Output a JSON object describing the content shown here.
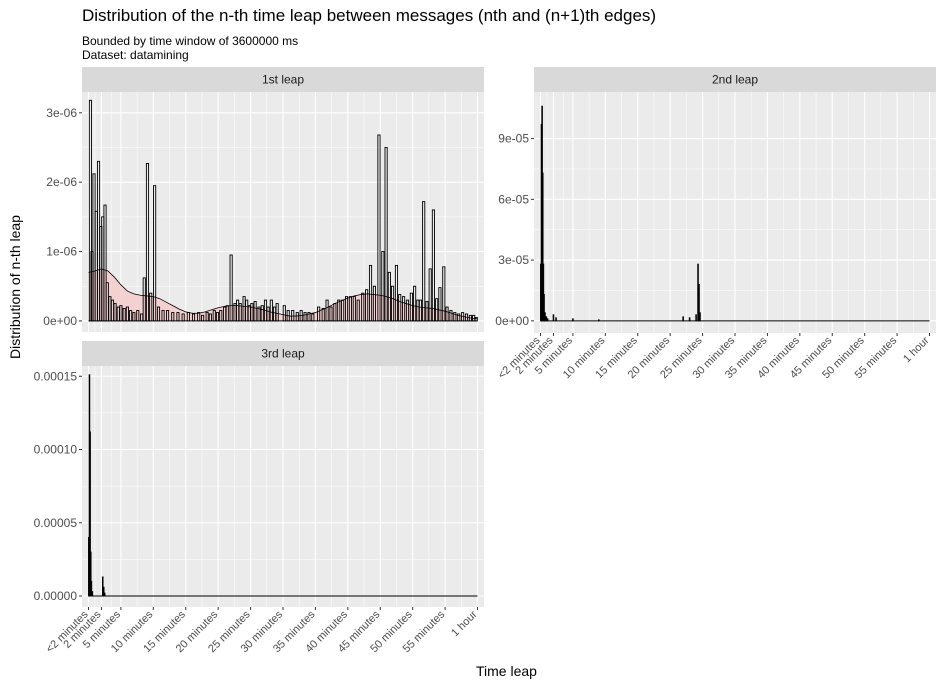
{
  "title": "Distribution of the n-th time leap between messages (nth and (n+1)th edges)",
  "subtitle_lines": [
    "Bounded by time window of 3600000 ms",
    "Dataset: datamining"
  ],
  "xlabel": "Time leap",
  "ylabel": "Distribution of n-th leap",
  "colors": {
    "panel_bg": "#EBEBEB",
    "strip_bg": "#D9D9D9",
    "grid": "#FFFFFF",
    "bar_outline": "#000000",
    "density_fill": "#F4CCCC",
    "axis_text": "#4D4D4D"
  },
  "chart_data": {
    "type": "bar",
    "facets": "wrap",
    "x_ticks": [
      {
        "v": 0,
        "label": "<2 minutes"
      },
      {
        "v": 2,
        "label": "2 minutes"
      },
      {
        "v": 5,
        "label": "5 minutes"
      },
      {
        "v": 10,
        "label": "10 minutes"
      },
      {
        "v": 15,
        "label": "15 minutes"
      },
      {
        "v": 20,
        "label": "20 minutes"
      },
      {
        "v": 25,
        "label": "25 minutes"
      },
      {
        "v": 30,
        "label": "30 minutes"
      },
      {
        "v": 35,
        "label": "35 minutes"
      },
      {
        "v": 40,
        "label": "40 minutes"
      },
      {
        "v": 45,
        "label": "45 minutes"
      },
      {
        "v": 50,
        "label": "50 minutes"
      },
      {
        "v": 55,
        "label": "55 minutes"
      },
      {
        "v": 60,
        "label": "1 hour"
      }
    ],
    "xlim": [
      -1,
      61
    ],
    "panels": [
      {
        "strip": "1st leap",
        "ylim": [
          -1.6e-07,
          3.3e-06
        ],
        "y_ticks": [
          {
            "v": 0,
            "label": "0e+00"
          },
          {
            "v": 1e-06,
            "label": "1e-06"
          },
          {
            "v": 2e-06,
            "label": "2e-06"
          },
          {
            "v": 3e-06,
            "label": "3e-06"
          }
        ],
        "bars": [
          [
            0.3,
            3.18e-06
          ],
          [
            0.55,
            1e-06
          ],
          [
            0.85,
            2.12e-06
          ],
          [
            1.2,
            1.58e-06
          ],
          [
            1.55,
            2.3e-06
          ],
          [
            1.9,
            1.36e-06
          ],
          [
            2.2,
            1.5e-06
          ],
          [
            2.55,
            1.67e-06
          ],
          [
            2.9,
            5.5e-07
          ],
          [
            3.3,
            3.5e-07
          ],
          [
            3.7,
            3e-07
          ],
          [
            4.1,
            2.5e-07
          ],
          [
            4.6,
            2e-07
          ],
          [
            5.0,
            2.2e-07
          ],
          [
            5.5,
            1.8e-07
          ],
          [
            6.0,
            2e-07
          ],
          [
            6.5,
            1.5e-07
          ],
          [
            7.0,
            1.2e-07
          ],
          [
            7.6,
            1.5e-07
          ],
          [
            8.2,
            1e-07
          ],
          [
            8.6,
            6.2e-07
          ],
          [
            9.1,
            2.27e-06
          ],
          [
            9.6,
            4e-07
          ],
          [
            10.2,
            1.95e-06
          ],
          [
            10.8,
            2e-07
          ],
          [
            11.5,
            1.5e-07
          ],
          [
            12.2,
            1.5e-07
          ],
          [
            13.0,
            1.2e-07
          ],
          [
            13.8,
            1.2e-07
          ],
          [
            14.6,
            1e-07
          ],
          [
            15.4,
            1.2e-07
          ],
          [
            16.2,
            1e-07
          ],
          [
            17.0,
            1.2e-07
          ],
          [
            17.6,
            8e-08
          ],
          [
            18.3,
            1.2e-07
          ],
          [
            18.8,
            1e-07
          ],
          [
            19.4,
            1.5e-07
          ],
          [
            19.9,
            1.2e-07
          ],
          [
            20.4,
            1.5e-07
          ],
          [
            21.0,
            2e-07
          ],
          [
            21.4,
            2.2e-07
          ],
          [
            22.0,
            9.5e-07
          ],
          [
            22.6,
            2.5e-07
          ],
          [
            23.0,
            3e-07
          ],
          [
            23.4,
            2.5e-07
          ],
          [
            24.0,
            3.5e-07
          ],
          [
            24.4,
            3e-07
          ],
          [
            24.8,
            2.2e-07
          ],
          [
            25.2,
            2.5e-07
          ],
          [
            25.7,
            2.8e-07
          ],
          [
            26.3,
            2e-07
          ],
          [
            26.8,
            2.2e-07
          ],
          [
            27.3,
            3e-07
          ],
          [
            27.7,
            2e-07
          ],
          [
            28.2,
            3e-07
          ],
          [
            28.7,
            2e-07
          ],
          [
            29.1,
            2.5e-07
          ],
          [
            30.2,
            2.2e-07
          ],
          [
            30.8,
            1.5e-07
          ],
          [
            31.5,
            1.5e-07
          ],
          [
            32.2,
            1.2e-07
          ],
          [
            32.8,
            1.5e-07
          ],
          [
            33.4,
            1.2e-07
          ],
          [
            34.0,
            1.2e-07
          ],
          [
            34.6,
            1e-07
          ],
          [
            35.5,
            2e-07
          ],
          [
            36.2,
            1.8e-07
          ],
          [
            36.8,
            3e-07
          ],
          [
            37.4,
            2e-07
          ],
          [
            38.0,
            2.5e-07
          ],
          [
            38.6,
            3e-07
          ],
          [
            39.2,
            3e-07
          ],
          [
            39.8,
            3.5e-07
          ],
          [
            40.4,
            3.5e-07
          ],
          [
            41.0,
            3.5e-07
          ],
          [
            41.6,
            3e-07
          ],
          [
            42.3,
            4e-07
          ],
          [
            42.9,
            4.5e-07
          ],
          [
            43.5,
            8e-07
          ],
          [
            44.1,
            5e-07
          ],
          [
            44.8,
            2.68e-06
          ],
          [
            45.4,
            1e-06
          ],
          [
            45.9,
            2.5e-06
          ],
          [
            46.4,
            7e-07
          ],
          [
            46.9,
            5e-07
          ],
          [
            47.5,
            8e-07
          ],
          [
            48.0,
            3.8e-07
          ],
          [
            48.6,
            3.5e-07
          ],
          [
            49.2,
            3e-07
          ],
          [
            49.8,
            4e-07
          ],
          [
            50.3,
            5e-07
          ],
          [
            50.8,
            3e-07
          ],
          [
            51.2,
            3e-07
          ],
          [
            51.7,
            1.72e-06
          ],
          [
            52.2,
            2.8e-07
          ],
          [
            52.7,
            7.5e-07
          ],
          [
            53.2,
            1.6e-06
          ],
          [
            53.7,
            3.2e-07
          ],
          [
            54.2,
            4.8e-07
          ],
          [
            54.8,
            7.8e-07
          ],
          [
            55.3,
            2e-07
          ],
          [
            55.9,
            1.5e-07
          ],
          [
            56.5,
            1.2e-07
          ],
          [
            57.1,
            1e-07
          ],
          [
            57.7,
            1.2e-07
          ],
          [
            58.3,
            1e-07
          ],
          [
            58.9,
            8e-08
          ],
          [
            59.4,
            8e-08
          ],
          [
            59.8,
            5e-08
          ]
        ],
        "density": [
          [
            0,
            7e-07
          ],
          [
            1,
            7.2e-07
          ],
          [
            2,
            7.5e-07
          ],
          [
            3,
            7.2e-07
          ],
          [
            4,
            6.3e-07
          ],
          [
            5,
            5.2e-07
          ],
          [
            6,
            4.3e-07
          ],
          [
            7,
            3.9e-07
          ],
          [
            8,
            3.7e-07
          ],
          [
            9,
            3.6e-07
          ],
          [
            10,
            3.5e-07
          ],
          [
            11,
            3.2e-07
          ],
          [
            12,
            2.7e-07
          ],
          [
            13,
            2.2e-07
          ],
          [
            14,
            1.7e-07
          ],
          [
            15,
            1.3e-07
          ],
          [
            16,
            1.1e-07
          ],
          [
            17,
            1.1e-07
          ],
          [
            18,
            1.3e-07
          ],
          [
            19,
            1.6e-07
          ],
          [
            20,
            1.9e-07
          ],
          [
            21,
            2.1e-07
          ],
          [
            22,
            2.2e-07
          ],
          [
            23,
            2.2e-07
          ],
          [
            24,
            2.1e-07
          ],
          [
            25,
            2e-07
          ],
          [
            26,
            1.8e-07
          ],
          [
            27,
            1.6e-07
          ],
          [
            28,
            1.3e-07
          ],
          [
            29,
            1.1e-07
          ],
          [
            30,
            9e-08
          ],
          [
            31,
            7e-08
          ],
          [
            32,
            7e-08
          ],
          [
            33,
            8e-08
          ],
          [
            34,
            1e-07
          ],
          [
            35,
            1.2e-07
          ],
          [
            36,
            1.6e-07
          ],
          [
            37,
            2e-07
          ],
          [
            38,
            2.5e-07
          ],
          [
            39,
            2.9e-07
          ],
          [
            40,
            3.3e-07
          ],
          [
            41,
            3.6e-07
          ],
          [
            42,
            3.8e-07
          ],
          [
            43,
            3.9e-07
          ],
          [
            44,
            3.8e-07
          ],
          [
            45,
            3.7e-07
          ],
          [
            46,
            3.5e-07
          ],
          [
            47,
            3.2e-07
          ],
          [
            48,
            2.8e-07
          ],
          [
            49,
            2.5e-07
          ],
          [
            50,
            2.2e-07
          ],
          [
            51,
            2e-07
          ],
          [
            52,
            1.9e-07
          ],
          [
            53,
            1.8e-07
          ],
          [
            54,
            1.6e-07
          ],
          [
            55,
            1.4e-07
          ],
          [
            56,
            1.1e-07
          ],
          [
            57,
            8e-08
          ],
          [
            58,
            6e-08
          ],
          [
            59,
            4e-08
          ],
          [
            60,
            3e-08
          ]
        ]
      },
      {
        "strip": "2nd leap",
        "ylim": [
          -6e-06,
          0.000113
        ],
        "y_ticks": [
          {
            "v": 0,
            "label": "0e+00"
          },
          {
            "v": 3e-05,
            "label": "3e-05"
          },
          {
            "v": 6e-05,
            "label": "6e-05"
          },
          {
            "v": 9e-05,
            "label": "9e-05"
          }
        ],
        "bars": [
          [
            0.05,
            2.8e-05
          ],
          [
            0.15,
            9.7e-05
          ],
          [
            0.25,
            0.000106
          ],
          [
            0.35,
            7.3e-05
          ],
          [
            0.45,
            2.8e-05
          ],
          [
            0.55,
            1.3e-05
          ],
          [
            0.7,
            4e-06
          ],
          [
            0.9,
            2e-06
          ],
          [
            1.1,
            1e-06
          ],
          [
            2.0,
            3e-06
          ],
          [
            2.4,
            1.5e-06
          ],
          [
            5.0,
            1e-06
          ],
          [
            9.0,
            5e-07
          ],
          [
            22.0,
            2e-06
          ],
          [
            23.0,
            1.5e-06
          ],
          [
            24.0,
            3e-06
          ],
          [
            24.3,
            2.8e-05
          ],
          [
            24.45,
            1.8e-05
          ],
          [
            24.6,
            4e-06
          ]
        ],
        "density": []
      },
      {
        "strip": "3rd leap",
        "ylim": [
          -7.5e-06,
          0.000157
        ],
        "y_ticks": [
          {
            "v": 0,
            "label": "0.00000"
          },
          {
            "v": 5e-05,
            "label": "0.00005"
          },
          {
            "v": 0.0001,
            "label": "0.00010"
          },
          {
            "v": 0.00015,
            "label": "0.00015"
          }
        ],
        "bars": [
          [
            0.05,
            4e-05
          ],
          [
            0.15,
            0.000151
          ],
          [
            0.25,
            0.000112
          ],
          [
            0.35,
            3e-05
          ],
          [
            0.45,
            1e-05
          ],
          [
            0.6,
            3e-06
          ],
          [
            2.2,
            1.3e-05
          ],
          [
            2.35,
            6e-06
          ],
          [
            2.5,
            2e-06
          ]
        ],
        "density": []
      }
    ]
  }
}
